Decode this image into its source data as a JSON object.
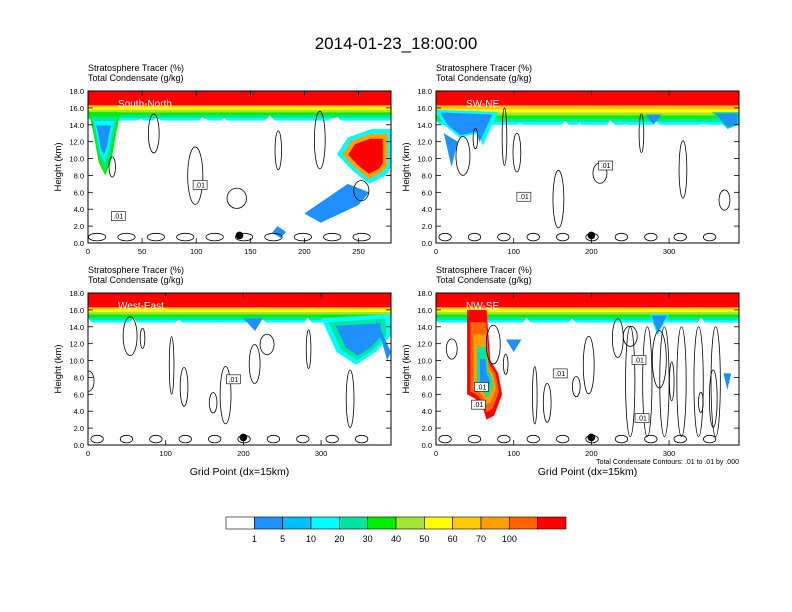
{
  "figure": {
    "title": "2014-01-23_18:00:00",
    "footnote": "Total Condensate Contours: .01 to .01 by .000",
    "x_axis_label": "Grid Point (dx=15km)",
    "y_axis_label": "Height (km)",
    "left_header_1": "Stratosphere Tracer   (%)",
    "left_header_2": "Total Condensate   (g/kg)"
  },
  "chart_data": [
    {
      "type": "heatmap",
      "panel": "South-North",
      "title": "South-North",
      "left_string_1": "Stratosphere Tracer   (%)",
      "left_string_2": "Total Condensate   (g/kg)",
      "ylabel": "Height (km)",
      "xlim": [
        0,
        280
      ],
      "ylim": [
        0,
        18
      ],
      "x_ticks": [
        0,
        50,
        100,
        150,
        200,
        250
      ],
      "y_ticks": [
        "0.0",
        "2.0",
        "4.0",
        "6.0",
        "8.0",
        "10.0",
        "12.0",
        "14.0",
        "16.0",
        "18.0"
      ],
      "marker_x": 140,
      "contour_labels": [
        ".01",
        ".01"
      ],
      "tracer_top_pct": 100,
      "tracer_layer_base_km": 14.5
    },
    {
      "type": "heatmap",
      "panel": "SW-NE",
      "title": "SW-NE",
      "left_string_1": "Stratosphere Tracer   (%)",
      "left_string_2": "Total Condensate   (g/kg)",
      "ylabel": "Height (km)",
      "xlim": [
        0,
        390
      ],
      "ylim": [
        0,
        18
      ],
      "x_ticks": [
        0,
        100,
        200,
        300
      ],
      "y_ticks": [
        "0.0",
        "2.0",
        "4.0",
        "6.0",
        "8.0",
        "10.0",
        "12.0",
        "14.0",
        "16.0",
        "18.0"
      ],
      "marker_x": 200,
      "contour_labels": [
        ".01",
        ".01"
      ],
      "tracer_top_pct": 100,
      "tracer_layer_base_km": 14.0
    },
    {
      "type": "heatmap",
      "panel": "West-East",
      "title": "West-East",
      "left_string_1": "Stratosphere Tracer   (%)",
      "left_string_2": "Total Condensate   (g/kg)",
      "ylabel": "Height (km)",
      "xlabel": "Grid Point (dx=15km)",
      "xlim": [
        0,
        390
      ],
      "ylim": [
        0,
        18
      ],
      "x_ticks": [
        0,
        100,
        200,
        300
      ],
      "y_ticks": [
        "0.0",
        "2.0",
        "4.0",
        "6.0",
        "8.0",
        "10.0",
        "12.0",
        "14.0",
        "16.0",
        "18.0"
      ],
      "marker_x": 200,
      "contour_labels": [
        ".01"
      ],
      "tracer_top_pct": 100,
      "tracer_layer_base_km": 14.5
    },
    {
      "type": "heatmap",
      "panel": "NW-SE",
      "title": "NW-SE",
      "left_string_1": "Stratosphere Tracer   (%)",
      "left_string_2": "Total Condensate   (g/kg)",
      "ylabel": "Height (km)",
      "xlabel": "Grid Point (dx=15km)",
      "xlim": [
        0,
        390
      ],
      "ylim": [
        0,
        18
      ],
      "x_ticks": [
        0,
        100,
        200,
        300
      ],
      "y_ticks": [
        "0.0",
        "2.0",
        "4.0",
        "6.0",
        "8.0",
        "10.0",
        "12.0",
        "14.0",
        "16.0",
        "18.0"
      ],
      "marker_x": 200,
      "contour_labels": [
        ".01",
        ".01",
        ".01",
        ".01",
        ".01"
      ],
      "tracer_top_pct": 100,
      "tracer_layer_base_km": 14.5
    }
  ],
  "colorbar": {
    "levels": [
      "1",
      "5",
      "10",
      "20",
      "30",
      "40",
      "50",
      "60",
      "70",
      "100"
    ],
    "colors": [
      "#ffffff",
      "#1e90ff",
      "#00bfff",
      "#00ffff",
      "#00e5a0",
      "#00ee00",
      "#a0e632",
      "#ffff00",
      "#ffc800",
      "#ffa000",
      "#ff6400",
      "#ff0000"
    ]
  }
}
